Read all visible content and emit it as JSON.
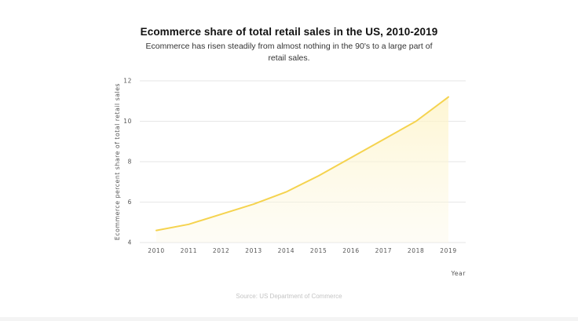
{
  "chart_data": {
    "type": "area",
    "title": "Ecommerce share of total retail sales in the US, 2010-2019",
    "subtitle": "Ecommerce has risen steadily from almost nothing in the 90's to a large part of retail sales.",
    "xlabel": "Year",
    "ylabel": "Ecommerce percent share of total retail sales",
    "source": "Source: US Department of Commerce",
    "x": [
      "2010",
      "2011",
      "2012",
      "2013",
      "2014",
      "2015",
      "2016",
      "2017",
      "2018",
      "2019"
    ],
    "series": [
      {
        "name": "Ecommerce share",
        "values": [
          4.6,
          4.9,
          5.4,
          5.9,
          6.5,
          7.3,
          8.2,
          9.1,
          10.0,
          11.2
        ],
        "color": "#f5d34f"
      }
    ],
    "yticks": [
      "4",
      "6",
      "8",
      "10",
      "12"
    ],
    "ylim": [
      4,
      12
    ],
    "grid": true
  }
}
